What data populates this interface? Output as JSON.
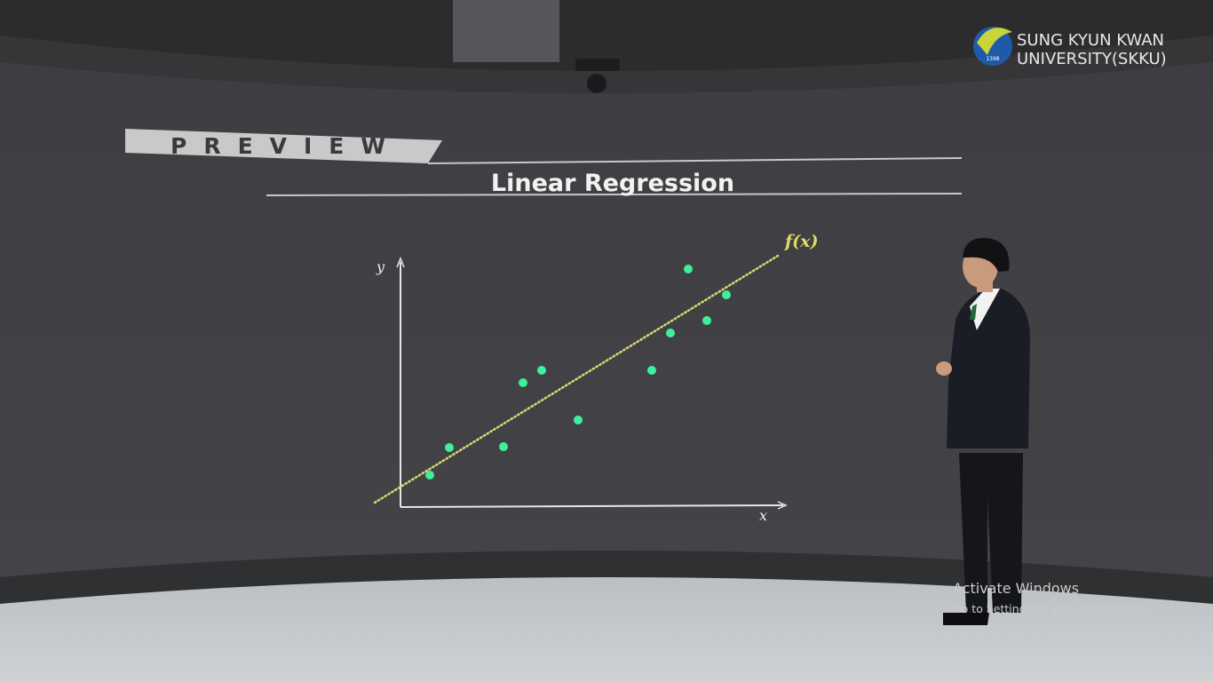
{
  "logo": {
    "line1": "SUNG KYUN KWAN",
    "line2": "UNIVERSITY(SKKU)",
    "emblem": "1398"
  },
  "slide": {
    "banner": "PREVIEW",
    "title": "Linear Regression",
    "line_label": "f(x)",
    "y_axis": "y",
    "x_axis": "x"
  },
  "watermark": {
    "title": "Activate Windows",
    "subtitle": "Go to Settings to activate Windows."
  }
}
